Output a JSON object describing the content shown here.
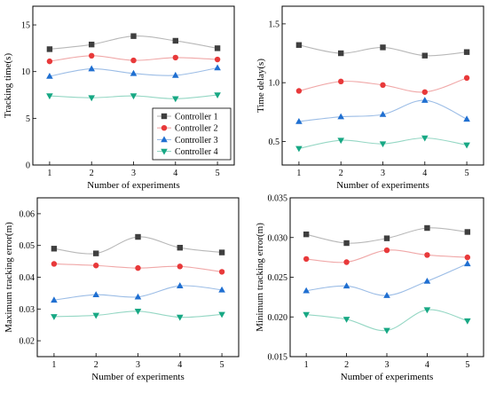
{
  "chart_data": [
    {
      "type": "line",
      "xlabel": "Number of experiments",
      "ylabel": "Tracking time(s)",
      "x": [
        1,
        2,
        3,
        4,
        5
      ],
      "xlim": [
        0.6,
        5.4
      ],
      "ylim": [
        0,
        17
      ],
      "yticks": [
        0,
        5,
        10,
        15
      ],
      "legend": "bottom-right",
      "series": [
        {
          "name": "Controller 1",
          "values": [
            12.4,
            12.9,
            13.8,
            13.3,
            12.5
          ]
        },
        {
          "name": "Controller 2",
          "values": [
            11.1,
            11.7,
            11.2,
            11.5,
            11.3
          ]
        },
        {
          "name": "Controller 3",
          "values": [
            9.5,
            10.3,
            9.8,
            9.6,
            10.4
          ]
        },
        {
          "name": "Controller 4",
          "values": [
            7.4,
            7.2,
            7.4,
            7.1,
            7.5
          ]
        }
      ]
    },
    {
      "type": "line",
      "xlabel": "Number of experiments",
      "ylabel": "Time delay(s)",
      "x": [
        1,
        2,
        3,
        4,
        5
      ],
      "xlim": [
        0.6,
        5.4
      ],
      "ylim": [
        0.3,
        1.65
      ],
      "yticks": [
        0.5,
        1.0,
        1.5
      ],
      "series": [
        {
          "name": "Controller 1",
          "values": [
            1.32,
            1.25,
            1.3,
            1.23,
            1.26
          ]
        },
        {
          "name": "Controller 2",
          "values": [
            0.93,
            1.01,
            0.98,
            0.92,
            1.04
          ]
        },
        {
          "name": "Controller 3",
          "values": [
            0.67,
            0.71,
            0.73,
            0.85,
            0.69
          ]
        },
        {
          "name": "Controller 4",
          "values": [
            0.44,
            0.51,
            0.48,
            0.53,
            0.47
          ]
        }
      ]
    },
    {
      "type": "line",
      "xlabel": "Number of experiments",
      "ylabel": "Maximum tracking error(m)",
      "x": [
        1,
        2,
        3,
        4,
        5
      ],
      "xlim": [
        0.6,
        5.4
      ],
      "ylim": [
        0.015,
        0.065
      ],
      "yticks": [
        0.02,
        0.03,
        0.04,
        0.05,
        0.06
      ],
      "series": [
        {
          "name": "Controller 1",
          "values": [
            0.049,
            0.0475,
            0.0527,
            0.0493,
            0.0478
          ]
        },
        {
          "name": "Controller 2",
          "values": [
            0.0442,
            0.0437,
            0.0429,
            0.0434,
            0.0417
          ]
        },
        {
          "name": "Controller 3",
          "values": [
            0.0328,
            0.0345,
            0.0338,
            0.0373,
            0.036
          ]
        },
        {
          "name": "Controller 4",
          "values": [
            0.0276,
            0.028,
            0.0293,
            0.0274,
            0.0283
          ]
        }
      ]
    },
    {
      "type": "line",
      "xlabel": "Number of experiments",
      "ylabel": "Minimum tracking error(m)",
      "x": [
        1,
        2,
        3,
        4,
        5
      ],
      "xlim": [
        0.6,
        5.4
      ],
      "ylim": [
        0.015,
        0.035
      ],
      "yticks": [
        0.015,
        0.02,
        0.025,
        0.03,
        0.035
      ],
      "series": [
        {
          "name": "Controller 1",
          "values": [
            0.0304,
            0.0293,
            0.0299,
            0.0312,
            0.0307
          ]
        },
        {
          "name": "Controller 2",
          "values": [
            0.0273,
            0.0269,
            0.0284,
            0.0278,
            0.0275
          ]
        },
        {
          "name": "Controller 3",
          "values": [
            0.0233,
            0.0239,
            0.0227,
            0.0245,
            0.0267
          ]
        },
        {
          "name": "Controller 4",
          "values": [
            0.0203,
            0.0197,
            0.0183,
            0.0209,
            0.0195
          ]
        }
      ]
    }
  ],
  "styles": {
    "series_colors": [
      "#3f3f3f",
      "#e8393a",
      "#1f6fd1",
      "#17a884"
    ],
    "line_colors": [
      "#b8b8b8",
      "#f0a8a8",
      "#9cbde6",
      "#95d7c4"
    ],
    "markers": [
      "square",
      "circle",
      "triangle-up",
      "triangle-down"
    ]
  }
}
